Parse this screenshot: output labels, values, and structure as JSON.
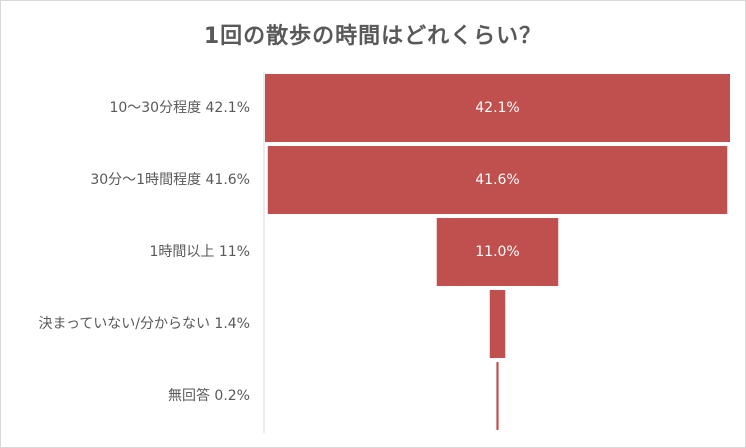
{
  "chart_data": {
    "type": "bar",
    "subtype": "funnel",
    "title": "1回の散歩の時間はどれくらい？",
    "categories": [
      "10〜30分程度 42.1%",
      "30分〜1時間程度 41.6%",
      "1時間以上 11%",
      "決まっていない/分からない 1.4%",
      "無回答 0.2%"
    ],
    "values": [
      42.1,
      41.6,
      11.0,
      1.4,
      0.2
    ],
    "data_labels": [
      "42.1%",
      "41.6%",
      "11.0%",
      "",
      ""
    ],
    "xlim": [
      0,
      42.1
    ],
    "bar_color": "#c0504d",
    "label_color": "#ffffff",
    "text_color": "#595959",
    "axis_color": "#d9d9d9"
  }
}
